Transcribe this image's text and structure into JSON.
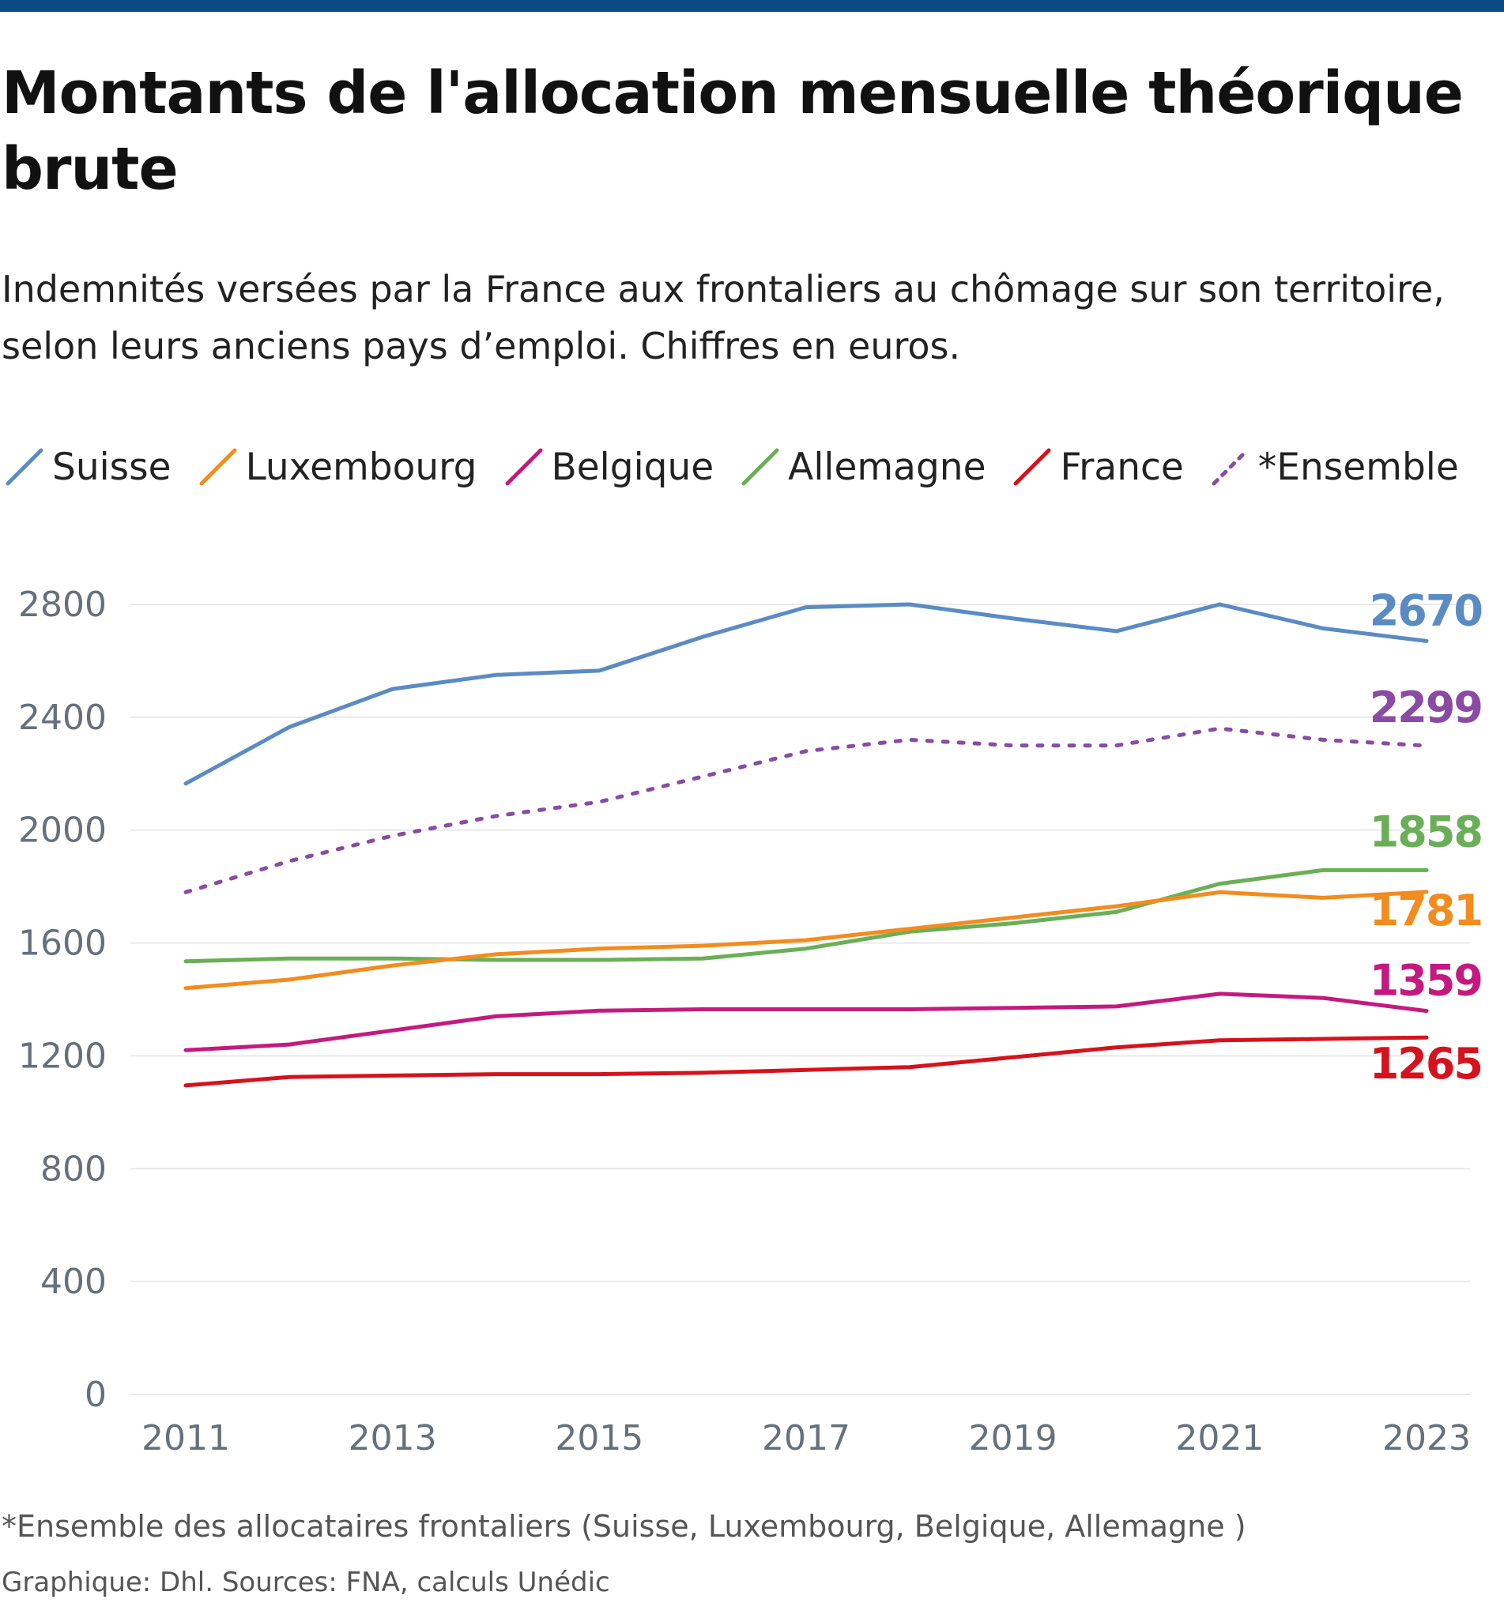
{
  "colors": {
    "topbar": "#0a4b86",
    "grid": "#e9e9e9",
    "axis_text": "#66707a"
  },
  "header": {
    "title": "Montants de l'allocation mensuelle théorique brute",
    "subtitle": "Indemnités versées par la France aux frontaliers au chômage sur son territoire, selon leurs anciens pays d’emploi. Chiffres en euros."
  },
  "legend": [
    {
      "label": "Suisse",
      "color": "#5b8bc3",
      "dashed": false
    },
    {
      "label": "Luxembourg",
      "color": "#f28c1e",
      "dashed": false
    },
    {
      "label": "Belgique",
      "color": "#c41a7f",
      "dashed": false
    },
    {
      "label": "Allemagne",
      "color": "#6aaf57",
      "dashed": false
    },
    {
      "label": "France",
      "color": "#d6121d",
      "dashed": false
    },
    {
      "label": "*Ensemble",
      "color": "#8a4ba3",
      "dashed": true
    }
  ],
  "chart_data": {
    "type": "line",
    "title": "Montants de l'allocation mensuelle théorique brute",
    "xlabel": "",
    "ylabel": "",
    "ylim": [
      0,
      2800
    ],
    "xlim": [
      2011,
      2023
    ],
    "yticks": [
      0,
      400,
      800,
      1200,
      1600,
      2000,
      2400,
      2800
    ],
    "xticks": [
      2011,
      2013,
      2015,
      2017,
      2019,
      2021,
      2023
    ],
    "grid": true,
    "x": [
      2011,
      2012,
      2013,
      2014,
      2015,
      2016,
      2017,
      2018,
      2019,
      2020,
      2021,
      2022,
      2023
    ],
    "series": [
      {
        "name": "Suisse",
        "color": "#5b8bc3",
        "dashed": false,
        "end_label": "2670",
        "values": [
          2165,
          2365,
          2500,
          2550,
          2565,
          2685,
          2790,
          2800,
          2750,
          2705,
          2800,
          2715,
          2670
        ]
      },
      {
        "name": "*Ensemble",
        "color": "#8a4ba3",
        "dashed": true,
        "end_label": "2299",
        "values": [
          1780,
          1890,
          1980,
          2050,
          2100,
          2190,
          2280,
          2320,
          2300,
          2300,
          2360,
          2320,
          2299
        ]
      },
      {
        "name": "Allemagne",
        "color": "#6aaf57",
        "dashed": false,
        "end_label": "1858",
        "values": [
          1535,
          1545,
          1545,
          1540,
          1540,
          1545,
          1580,
          1640,
          1670,
          1710,
          1810,
          1858,
          1858
        ]
      },
      {
        "name": "Luxembourg",
        "color": "#f28c1e",
        "dashed": false,
        "end_label": "1781",
        "values": [
          1440,
          1470,
          1520,
          1560,
          1580,
          1590,
          1610,
          1650,
          1690,
          1730,
          1780,
          1760,
          1781
        ]
      },
      {
        "name": "Belgique",
        "color": "#c41a7f",
        "dashed": false,
        "end_label": "1359",
        "values": [
          1220,
          1240,
          1290,
          1340,
          1360,
          1365,
          1365,
          1365,
          1370,
          1375,
          1420,
          1405,
          1359
        ]
      },
      {
        "name": "France",
        "color": "#d6121d",
        "dashed": false,
        "end_label": "1265",
        "values": [
          1095,
          1125,
          1130,
          1135,
          1135,
          1140,
          1150,
          1160,
          1195,
          1230,
          1255,
          1260,
          1265
        ]
      }
    ]
  },
  "footer": {
    "note": "*Ensemble des allocataires frontaliers (Suisse, Luxembourg, Belgique, Allemagne )",
    "credit": "Graphique: Dhl. Sources: FNA, calculs Unédic"
  }
}
